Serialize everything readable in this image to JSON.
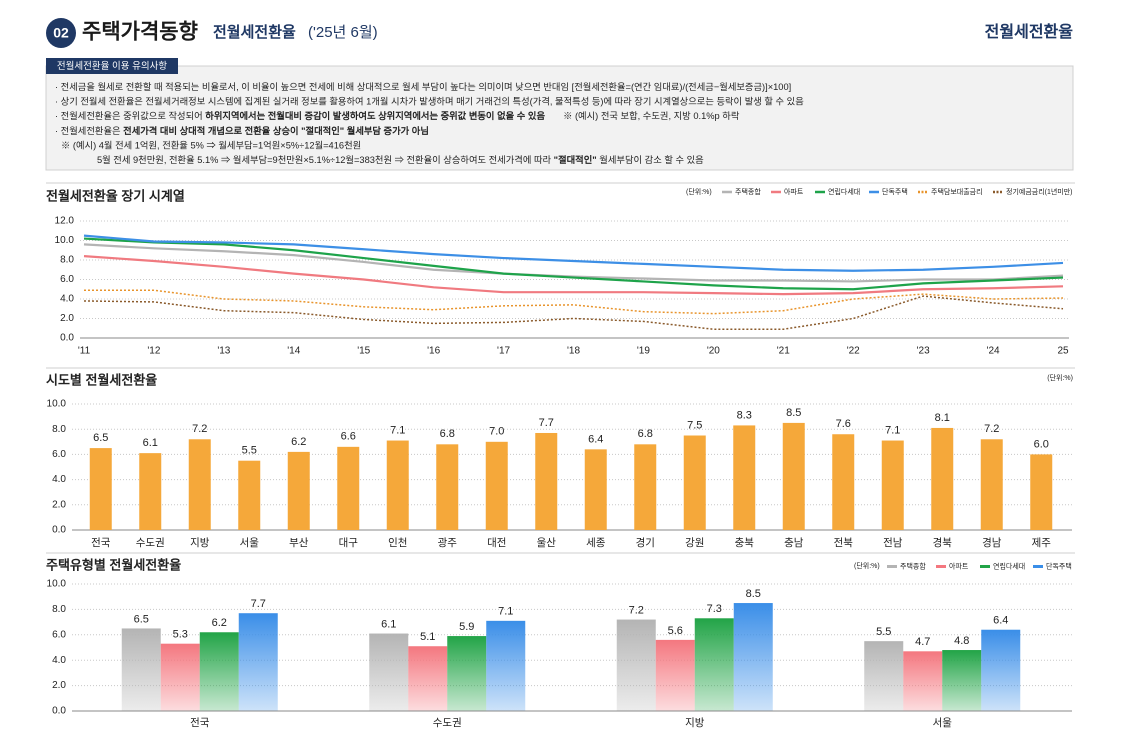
{
  "header": {
    "number": "02",
    "title": "주택가격동향",
    "subtitle": "전월세전환율",
    "date": "('25년 6월)",
    "right_title": "전월세전환율"
  },
  "notice": {
    "title": "전월세전환율 이용 유의사항",
    "lines": [
      [
        "· 전세금을 월세로 전환할 때 적용되는 비율로서, 이 비율이 높으면 전세에 비해 상대적으로 월세 부담이 높다는 의미이며 낮으면 반대임 [전월세전환율=(연간 임대료)/(전세금−월세보증금)]×100]"
      ],
      [
        "· 상기 전월세 전환율은 전월세거래정보 시스템에 집계된 실거래 정보를 활용하여 1개월 시차가 발생하며 매기 거래건의 특성(가격, 물적특성 등)에 따라 장기 시계열상으로는 등락이 발생 할 수 있음"
      ],
      [
        "· 전월세전환율은 중위값으로 작성되어 ",
        "하위지역에서는 전월대비 증감이 발생하여도 상위지역에서는 중위값 변동이 없을 수 있음",
        "       ※ (예시) 전국 보합, 수도권, 지방 0.1%p 하락"
      ],
      [
        "· 전월세전환율은 ",
        "전세가격 대비 상대적 개념으로 전환율 상승이 \"절대적인\" 월세부담 증가가 아님"
      ],
      [
        "※ (예시) 4월 전세 1억원, 전환율 5% ⇒ 월세부담=1억원×5%÷12월=416천원"
      ],
      [
        "5월 전세 9천만원, 전환율 5.1% ⇒ 월세부담=9천만원×5.1%÷12월=383천원 ⇒ 전환율이 상승하여도 전세가격에 따라 ",
        "\"절대적인\"",
        " 월세부담이 감소 할 수 있음"
      ]
    ]
  },
  "chart_data": [
    {
      "type": "line",
      "title": "전월세전환율 장기 시계열",
      "unit": "(단위:%)",
      "x": [
        2011,
        2012,
        2013,
        2014,
        2015,
        2016,
        2017,
        2018,
        2019,
        2020,
        2021,
        2022,
        2023,
        2024,
        2025
      ],
      "xlim": [
        2011,
        2025
      ],
      "xticks": [
        {
          "value": 2011,
          "label": "'11"
        },
        {
          "value": 2012,
          "label": "'12"
        },
        {
          "value": 2013,
          "label": "'13"
        },
        {
          "value": 2014,
          "label": "'14"
        },
        {
          "value": 2015,
          "label": "'15"
        },
        {
          "value": 2016,
          "label": "'16"
        },
        {
          "value": 2017,
          "label": "'17"
        },
        {
          "value": 2018,
          "label": "'18"
        },
        {
          "value": 2019,
          "label": "'19"
        },
        {
          "value": 2020,
          "label": "'20"
        },
        {
          "value": 2021,
          "label": "'21"
        },
        {
          "value": 2022,
          "label": "'22"
        },
        {
          "value": 2023,
          "label": "'23"
        },
        {
          "value": 2024,
          "label": "'24"
        },
        {
          "value": 2025,
          "label": "25"
        }
      ],
      "ylim": [
        0,
        12
      ],
      "yticks": [
        {
          "value": 0,
          "label": "0.0"
        },
        {
          "value": 2,
          "label": "2.0"
        },
        {
          "value": 4,
          "label": "4.0"
        },
        {
          "value": 6,
          "label": "6.0"
        },
        {
          "value": 8,
          "label": "8.0"
        },
        {
          "value": 10,
          "label": "10.0"
        },
        {
          "value": 12,
          "label": "12.0"
        }
      ],
      "grid": true,
      "series": [
        {
          "name": "주택종합",
          "color": "#b4b4b4",
          "style": "solid",
          "values": [
            9.6,
            9.2,
            8.9,
            8.5,
            7.8,
            7.0,
            6.6,
            6.3,
            6.1,
            5.9,
            5.9,
            5.8,
            6.0,
            6.0,
            6.4
          ]
        },
        {
          "name": "아파트",
          "color": "#f07a80",
          "style": "solid",
          "values": [
            8.4,
            7.9,
            7.3,
            6.6,
            6.0,
            5.2,
            4.7,
            4.7,
            4.7,
            4.6,
            4.5,
            4.6,
            5.0,
            5.1,
            5.3
          ]
        },
        {
          "name": "연립다세대",
          "color": "#1ea34a",
          "style": "solid",
          "values": [
            10.2,
            9.8,
            9.6,
            9.0,
            8.2,
            7.4,
            6.6,
            6.2,
            5.8,
            5.4,
            5.1,
            5.0,
            5.6,
            5.9,
            6.2
          ]
        },
        {
          "name": "단독주택",
          "color": "#3d8fe6",
          "style": "solid",
          "values": [
            10.5,
            9.9,
            9.8,
            9.6,
            9.1,
            8.6,
            8.2,
            7.9,
            7.6,
            7.3,
            7.0,
            6.9,
            7.0,
            7.3,
            7.7
          ]
        },
        {
          "name": "주택담보대출금리",
          "color": "#e8942c",
          "style": "dotted",
          "values": [
            4.9,
            4.9,
            4.0,
            3.8,
            3.2,
            2.9,
            3.3,
            3.4,
            2.7,
            2.5,
            2.8,
            4.0,
            4.5,
            4.0,
            4.1
          ]
        },
        {
          "name": "정기예금금리(1년미만)",
          "color": "#8a5a2b",
          "style": "dotted",
          "values": [
            3.8,
            3.7,
            2.8,
            2.6,
            1.9,
            1.5,
            1.6,
            2.0,
            1.7,
            0.9,
            0.9,
            2.0,
            4.3,
            3.6,
            3.0
          ]
        }
      ]
    },
    {
      "type": "bar",
      "title": "시도별 전월세전환율",
      "unit": "(단위:%)",
      "categories": [
        "전국",
        "수도권",
        "지방",
        "서울",
        "부산",
        "대구",
        "인천",
        "광주",
        "대전",
        "울산",
        "세종",
        "경기",
        "강원",
        "충북",
        "충남",
        "전북",
        "전남",
        "경북",
        "경남",
        "제주"
      ],
      "values": [
        6.5,
        6.1,
        7.2,
        5.5,
        6.2,
        6.6,
        7.1,
        6.8,
        7.0,
        7.7,
        6.4,
        6.8,
        7.5,
        8.3,
        8.5,
        7.6,
        7.1,
        8.1,
        7.2,
        6.0
      ],
      "value_labels": [
        "6.5",
        "6.1",
        "7.2",
        "5.5",
        "6.2",
        "6.6",
        "7.1",
        "6.8",
        "7.0",
        "7.7",
        "6.4",
        "6.8",
        "7.5",
        "8.3",
        "8.5",
        "7.6",
        "7.1",
        "8.1",
        "7.2",
        "6.0"
      ],
      "color": "#f5a83a",
      "ylim": [
        0,
        10
      ],
      "yticks": [
        {
          "value": 0,
          "label": "0.0"
        },
        {
          "value": 2,
          "label": "2.0"
        },
        {
          "value": 4,
          "label": "4.0"
        },
        {
          "value": 6,
          "label": "6.0"
        },
        {
          "value": 8,
          "label": "8.0"
        },
        {
          "value": 10,
          "label": "10.0"
        }
      ]
    },
    {
      "type": "grouped_bar",
      "title": "주택유형별 전월세전환율",
      "unit": "(단위:%)",
      "categories": [
        "전국",
        "수도권",
        "지방",
        "서울"
      ],
      "ylim": [
        0,
        10
      ],
      "yticks": [
        {
          "value": 0,
          "label": "0.0"
        },
        {
          "value": 2,
          "label": "2.0"
        },
        {
          "value": 4,
          "label": "4.0"
        },
        {
          "value": 6,
          "label": "6.0"
        },
        {
          "value": 8,
          "label": "8.0"
        },
        {
          "value": 10,
          "label": "10.0"
        }
      ],
      "series": [
        {
          "name": "주택종합",
          "color": "#b4b4b4",
          "values": [
            6.5,
            6.1,
            7.2,
            5.5
          ]
        },
        {
          "name": "아파트",
          "color": "#f4777f",
          "values": [
            5.3,
            5.1,
            5.6,
            4.7
          ]
        },
        {
          "name": "연립다세대",
          "color": "#22a447",
          "values": [
            6.2,
            5.9,
            7.3,
            4.8
          ]
        },
        {
          "name": "단독주택",
          "color": "#3a8ee8",
          "values": [
            7.7,
            7.1,
            8.5,
            6.4
          ]
        }
      ]
    }
  ]
}
